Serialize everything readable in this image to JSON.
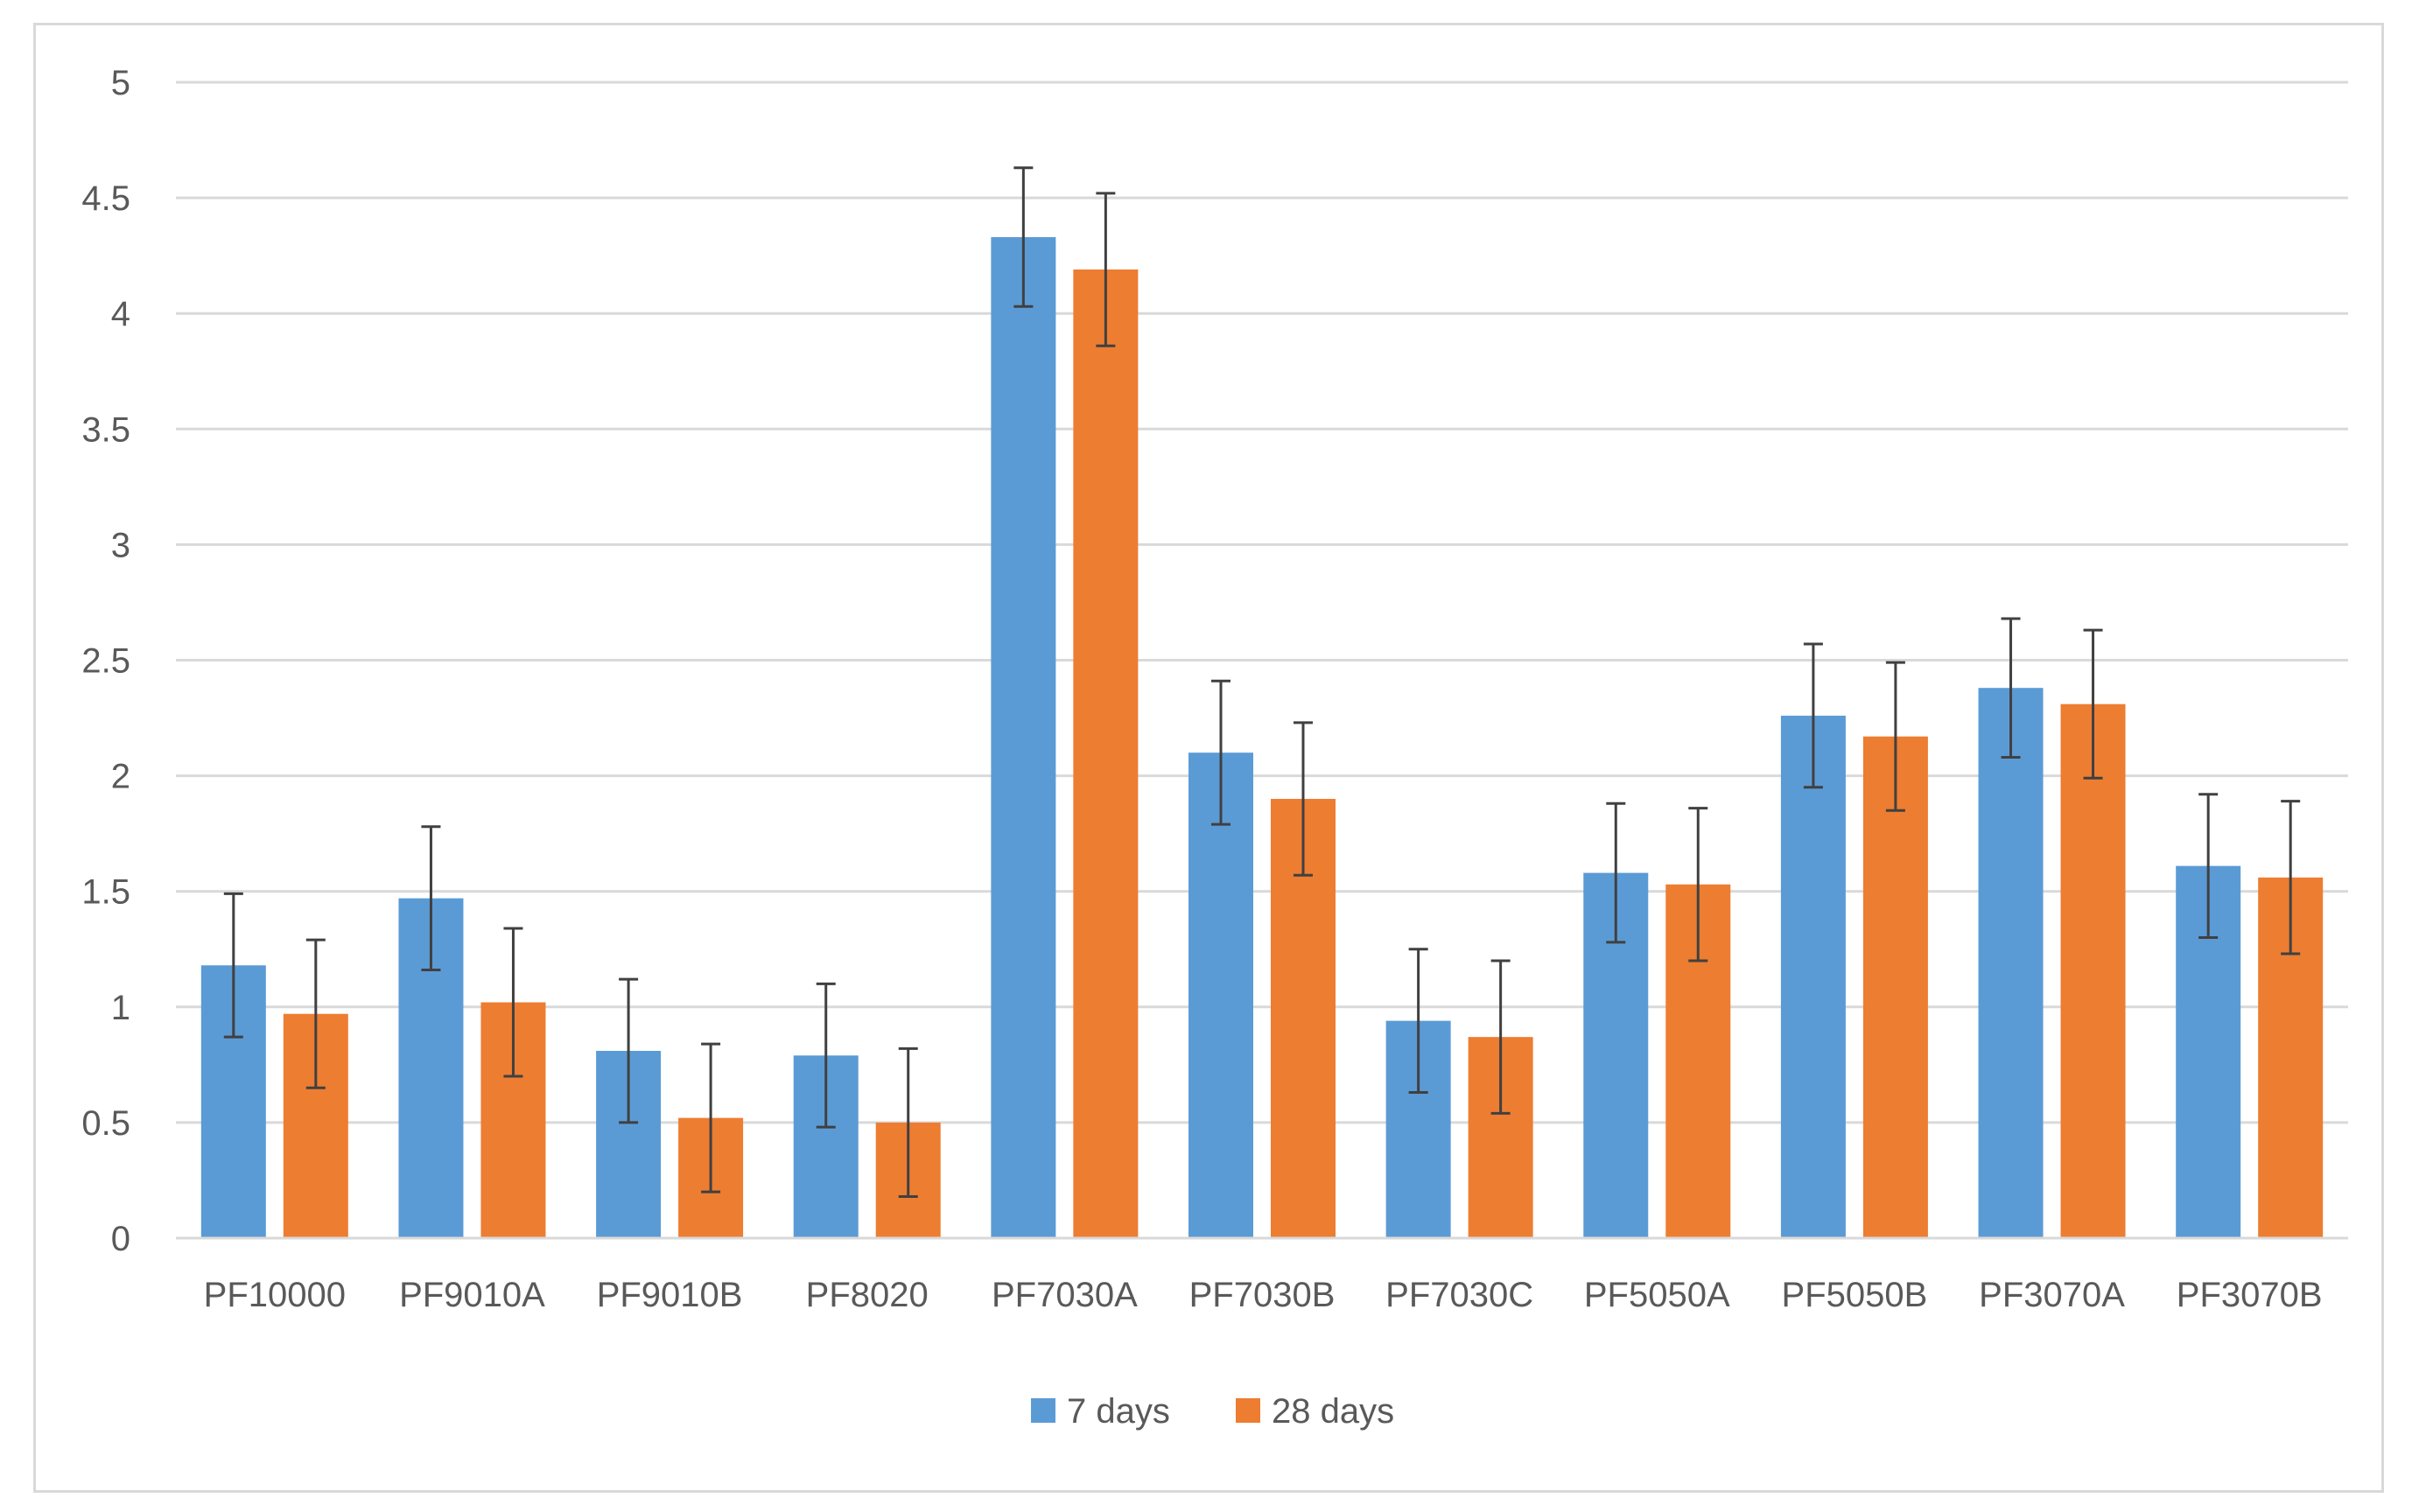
{
  "chart_data": {
    "type": "bar",
    "categories": [
      "PF10000",
      "PF9010A",
      "PF9010B",
      "PF8020",
      "PF7030A",
      "PF7030B",
      "PF7030C",
      "PF5050A",
      "PF5050B",
      "PF3070A",
      "PF3070B"
    ],
    "series": [
      {
        "name": "7 days",
        "color": "#5b9bd5",
        "values": [
          1.18,
          1.47,
          0.81,
          0.79,
          4.33,
          2.1,
          0.94,
          1.58,
          2.26,
          2.38,
          1.61
        ],
        "error": [
          0.31,
          0.31,
          0.31,
          0.31,
          0.3,
          0.31,
          0.31,
          0.3,
          0.31,
          0.3,
          0.31
        ]
      },
      {
        "name": "28 days",
        "color": "#ed7d31",
        "values": [
          0.97,
          1.02,
          0.52,
          0.5,
          4.19,
          1.9,
          0.87,
          1.53,
          2.17,
          2.31,
          1.56
        ],
        "error": [
          0.32,
          0.32,
          0.32,
          0.32,
          0.33,
          0.33,
          0.33,
          0.33,
          0.32,
          0.32,
          0.33
        ]
      }
    ],
    "title": "",
    "xlabel": "",
    "ylabel": "",
    "ylim": [
      0,
      5
    ],
    "yticks": [
      "0",
      "0.5",
      "1",
      "1.5",
      "2",
      "2.5",
      "3",
      "3.5",
      "4",
      "4.5",
      "5"
    ],
    "grid": true,
    "legend_position": "bottom",
    "error_bar_color": "#404040",
    "gridline_color": "#d9d9d9"
  }
}
